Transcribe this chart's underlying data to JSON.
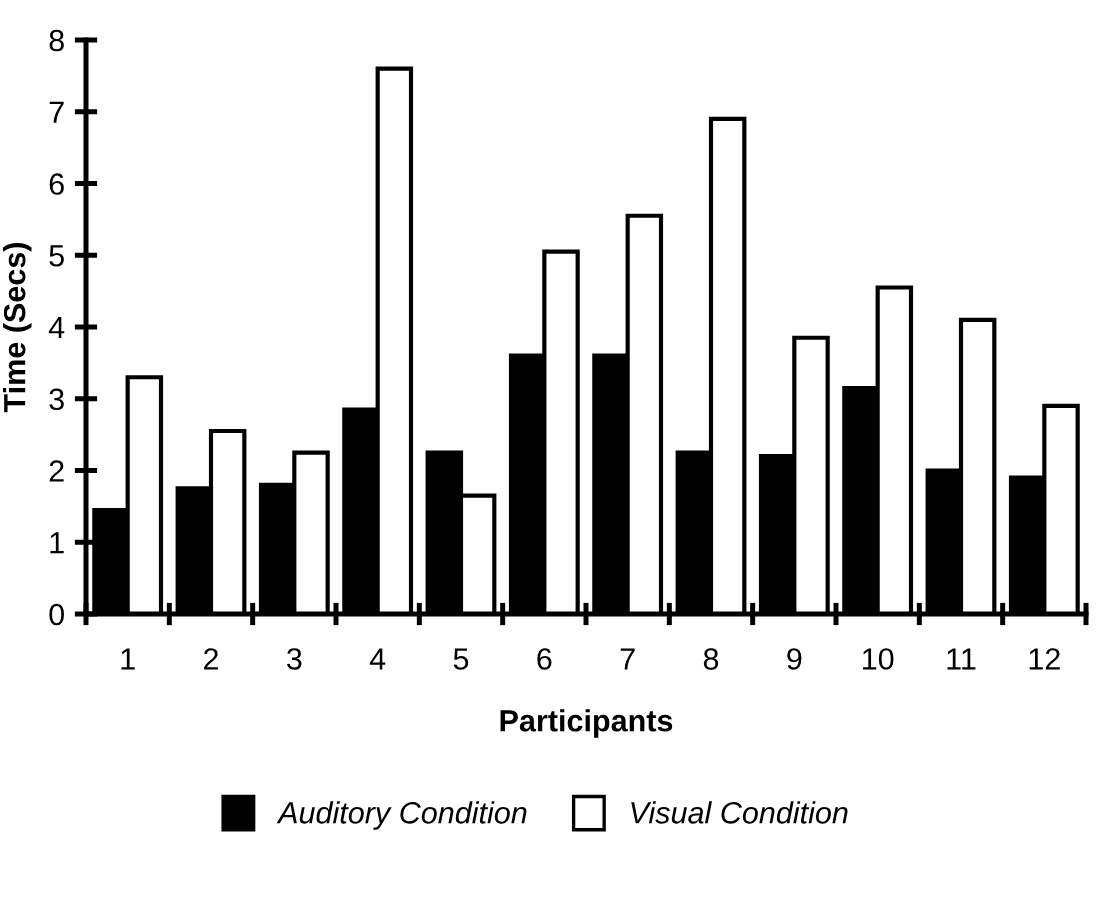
{
  "chart_data": {
    "type": "bar",
    "xlabel": "Participants",
    "ylabel": "Time (Secs)",
    "categories": [
      "1",
      "2",
      "3",
      "4",
      "5",
      "6",
      "7",
      "8",
      "9",
      "10",
      "11",
      "12"
    ],
    "series": [
      {
        "name": "Auditory Condition",
        "color": "#000000",
        "values": [
          1.45,
          1.75,
          1.8,
          2.85,
          2.25,
          3.6,
          3.6,
          2.25,
          2.2,
          3.15,
          2.0,
          1.9
        ]
      },
      {
        "name": "Visual Condition",
        "color": "#ffffff",
        "values": [
          3.3,
          2.55,
          2.25,
          7.6,
          1.65,
          5.05,
          5.55,
          6.9,
          3.85,
          4.55,
          4.1,
          2.9
        ]
      }
    ],
    "ylim": [
      0,
      8
    ],
    "yticks": [
      0,
      1,
      2,
      3,
      4,
      5,
      6,
      7,
      8
    ],
    "grid": false,
    "legend": "bottom"
  }
}
